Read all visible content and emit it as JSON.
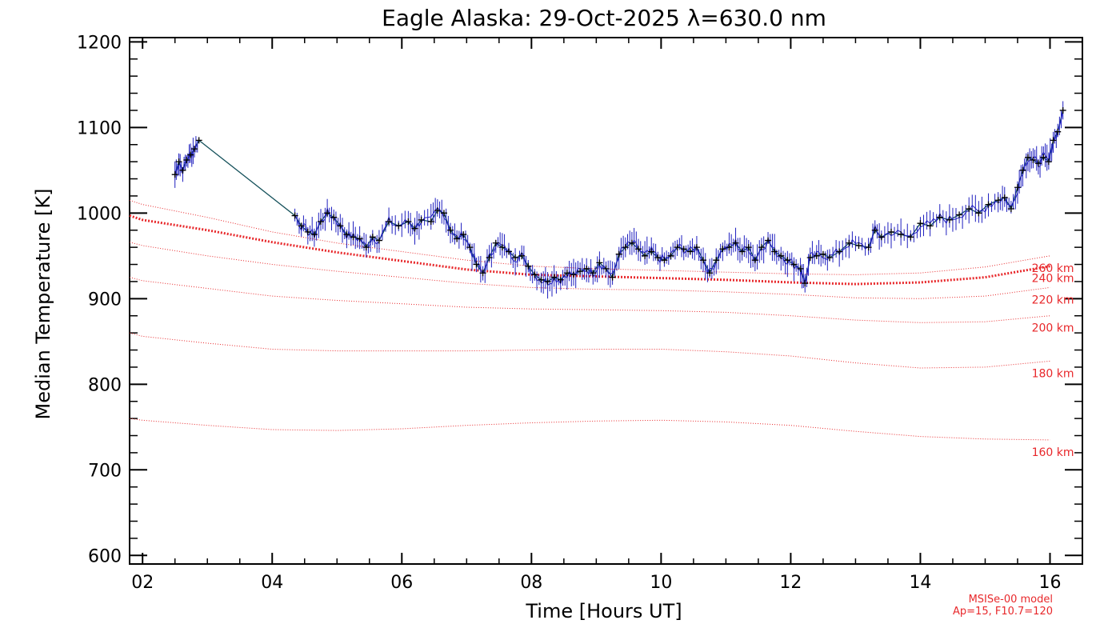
{
  "chart_data": {
    "type": "line",
    "title": "Eagle Alaska: 29-Oct-2025 λ=630.0 nm",
    "xlabel": "Time [Hours UT]",
    "ylabel": "Median Temperature [K]",
    "xlim": [
      1.8,
      16.5
    ],
    "ylim": [
      590,
      1205
    ],
    "x_ticks": [
      2,
      4,
      6,
      8,
      10,
      12,
      14,
      16
    ],
    "x_tick_labels": [
      "02",
      "04",
      "06",
      "08",
      "10",
      "12",
      "14",
      "16"
    ],
    "y_ticks": [
      600,
      700,
      800,
      900,
      1000,
      1100,
      1200
    ],
    "y_tick_labels": [
      "600",
      "700",
      "800",
      "900",
      "1000",
      "1100",
      "1200"
    ],
    "measured_series": {
      "name": "Median Temperature",
      "line_color": "#1f1fbf",
      "marker_color": "#000000",
      "points": [
        [
          2.5,
          1045
        ],
        [
          2.56,
          1060
        ],
        [
          2.62,
          1050
        ],
        [
          2.68,
          1062
        ],
        [
          2.74,
          1068
        ],
        [
          2.8,
          1075
        ],
        [
          2.87,
          1085
        ],
        [
          4.35,
          997
        ],
        [
          4.45,
          985
        ],
        [
          4.55,
          978
        ],
        [
          4.65,
          975
        ],
        [
          4.75,
          990
        ],
        [
          4.85,
          1000
        ],
        [
          4.95,
          995
        ],
        [
          5.05,
          985
        ],
        [
          5.15,
          975
        ],
        [
          5.25,
          972
        ],
        [
          5.35,
          970
        ],
        [
          5.45,
          960
        ],
        [
          5.55,
          972
        ],
        [
          5.65,
          968
        ],
        [
          5.8,
          990
        ],
        [
          5.95,
          985
        ],
        [
          6.1,
          990
        ],
        [
          6.2,
          982
        ],
        [
          6.3,
          992
        ],
        [
          6.45,
          990
        ],
        [
          6.55,
          1003
        ],
        [
          6.65,
          1000
        ],
        [
          6.75,
          980
        ],
        [
          6.85,
          970
        ],
        [
          6.95,
          975
        ],
        [
          7.05,
          960
        ],
        [
          7.15,
          940
        ],
        [
          7.25,
          930
        ],
        [
          7.35,
          948
        ],
        [
          7.45,
          965
        ],
        [
          7.55,
          960
        ],
        [
          7.65,
          955
        ],
        [
          7.75,
          948
        ],
        [
          7.85,
          950
        ],
        [
          7.95,
          938
        ],
        [
          8.05,
          928
        ],
        [
          8.15,
          922
        ],
        [
          8.25,
          920
        ],
        [
          8.35,
          925
        ],
        [
          8.45,
          922
        ],
        [
          8.55,
          930
        ],
        [
          8.65,
          928
        ],
        [
          8.75,
          932
        ],
        [
          8.85,
          935
        ],
        [
          8.95,
          930
        ],
        [
          9.05,
          942
        ],
        [
          9.15,
          935
        ],
        [
          9.25,
          925
        ],
        [
          9.35,
          952
        ],
        [
          9.45,
          960
        ],
        [
          9.55,
          965
        ],
        [
          9.65,
          958
        ],
        [
          9.75,
          950
        ],
        [
          9.85,
          955
        ],
        [
          9.95,
          948
        ],
        [
          10.05,
          945
        ],
        [
          10.15,
          950
        ],
        [
          10.25,
          960
        ],
        [
          10.35,
          958
        ],
        [
          10.45,
          955
        ],
        [
          10.55,
          960
        ],
        [
          10.65,
          945
        ],
        [
          10.75,
          930
        ],
        [
          10.85,
          945
        ],
        [
          10.95,
          958
        ],
        [
          11.05,
          960
        ],
        [
          11.15,
          965
        ],
        [
          11.25,
          955
        ],
        [
          11.35,
          960
        ],
        [
          11.45,
          945
        ],
        [
          11.55,
          960
        ],
        [
          11.65,
          968
        ],
        [
          11.75,
          955
        ],
        [
          11.85,
          950
        ],
        [
          11.95,
          945
        ],
        [
          12.05,
          940
        ],
        [
          12.15,
          935
        ],
        [
          12.22,
          918
        ],
        [
          12.3,
          948
        ],
        [
          12.4,
          950
        ],
        [
          12.5,
          952
        ],
        [
          12.6,
          948
        ],
        [
          12.75,
          955
        ],
        [
          12.9,
          965
        ],
        [
          13.05,
          962
        ],
        [
          13.2,
          960
        ],
        [
          13.3,
          980
        ],
        [
          13.4,
          972
        ],
        [
          13.55,
          978
        ],
        [
          13.7,
          975
        ],
        [
          13.85,
          972
        ],
        [
          14.0,
          988
        ],
        [
          14.15,
          985
        ],
        [
          14.3,
          995
        ],
        [
          14.45,
          992
        ],
        [
          14.6,
          998
        ],
        [
          14.75,
          1005
        ],
        [
          14.9,
          1000
        ],
        [
          15.05,
          1010
        ],
        [
          15.2,
          1015
        ],
        [
          15.3,
          1018
        ],
        [
          15.4,
          1005
        ],
        [
          15.5,
          1030
        ],
        [
          15.58,
          1050
        ],
        [
          15.66,
          1065
        ],
        [
          15.74,
          1062
        ],
        [
          15.82,
          1058
        ],
        [
          15.9,
          1065
        ],
        [
          15.98,
          1060
        ],
        [
          16.05,
          1085
        ],
        [
          16.12,
          1095
        ],
        [
          16.2,
          1120
        ]
      ]
    },
    "msis_series": [
      {
        "name": "160 km",
        "label": "160 km",
        "x": [
          1.8,
          2.0,
          3.0,
          4.0,
          5.0,
          6.0,
          7.0,
          8.0,
          9.0,
          10.0,
          11.0,
          12.0,
          13.0,
          14.0,
          15.0,
          16.0
        ],
        "values": [
          760,
          758,
          752,
          747,
          746,
          748,
          752,
          755,
          757,
          758,
          756,
          752,
          745,
          739,
          736,
          735
        ]
      },
      {
        "name": "180 km",
        "label": "180 km",
        "x": [
          1.8,
          2.0,
          3.0,
          4.0,
          5.0,
          6.0,
          7.0,
          8.0,
          9.0,
          10.0,
          11.0,
          12.0,
          13.0,
          14.0,
          15.0,
          16.0
        ],
        "values": [
          860,
          856,
          848,
          841,
          839,
          839,
          839,
          840,
          841,
          841,
          838,
          833,
          825,
          819,
          820,
          827
        ]
      },
      {
        "name": "200 km",
        "label": "200 km",
        "x": [
          1.8,
          2.0,
          3.0,
          4.0,
          5.0,
          6.0,
          7.0,
          8.0,
          9.0,
          10.0,
          11.0,
          12.0,
          13.0,
          14.0,
          15.0,
          16.0
        ],
        "values": [
          925,
          921,
          912,
          903,
          898,
          894,
          890,
          888,
          887,
          886,
          884,
          880,
          875,
          872,
          873,
          880
        ]
      },
      {
        "name": "220 km",
        "label": "220 km",
        "x": [
          1.8,
          2.0,
          3.0,
          4.0,
          5.0,
          6.0,
          7.0,
          8.0,
          9.0,
          10.0,
          11.0,
          12.0,
          13.0,
          14.0,
          15.0,
          16.0
        ],
        "values": [
          966,
          962,
          950,
          940,
          932,
          925,
          918,
          913,
          911,
          910,
          908,
          905,
          901,
          900,
          903,
          913
        ]
      },
      {
        "name": "240 km",
        "label": "240 km",
        "highlight": true,
        "x": [
          1.8,
          2.0,
          3.0,
          4.0,
          5.0,
          6.0,
          7.0,
          8.0,
          9.0,
          10.0,
          11.0,
          12.0,
          13.0,
          14.0,
          15.0,
          16.0
        ],
        "values": [
          997,
          992,
          980,
          966,
          954,
          944,
          934,
          928,
          926,
          924,
          922,
          919,
          917,
          919,
          925,
          938
        ]
      },
      {
        "name": "260 km",
        "label": "260 km",
        "x": [
          1.8,
          2.0,
          3.0,
          4.0,
          5.0,
          6.0,
          7.0,
          8.0,
          9.0,
          10.0,
          11.0,
          12.0,
          13.0,
          14.0,
          15.0,
          16.0
        ],
        "values": [
          1015,
          1010,
          995,
          978,
          965,
          955,
          945,
          938,
          935,
          933,
          931,
          929,
          928,
          930,
          937,
          950
        ]
      }
    ],
    "model_color": "#e8282b",
    "model_note_line1": "MSISe-00 model",
    "model_note_line2": "Ap=15, F10.7=120"
  }
}
